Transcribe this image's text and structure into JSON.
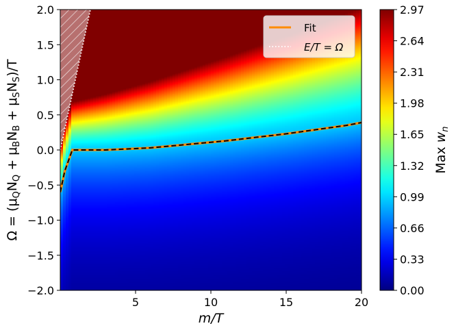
{
  "chart_data": {
    "type": "heatmap",
    "xlabel": "m/T",
    "ylabel": "Ω = (μ_Q N_Q + μ_B N_B + μ_S N_S)/T",
    "xlim": [
      0.0,
      20.0
    ],
    "ylim": [
      -2.0,
      2.0
    ],
    "x_ticks": [
      5,
      10,
      15,
      20
    ],
    "x_tick_labels": [
      "5",
      "10",
      "15",
      "20"
    ],
    "y_ticks": [
      -2.0,
      -1.5,
      -1.0,
      -0.5,
      0.0,
      0.5,
      1.0,
      1.5,
      2.0
    ],
    "y_tick_labels": [
      "−2.0",
      "−1.5",
      "−1.0",
      "−0.5",
      "0.0",
      "0.5",
      "1.0",
      "1.5",
      "2.0"
    ],
    "colorbar": {
      "label": "Max w_n",
      "range": [
        0.0,
        2.97
      ],
      "ticks": [
        0.0,
        0.33,
        0.66,
        0.99,
        1.32,
        1.65,
        1.98,
        2.31,
        2.64,
        2.97
      ],
      "tick_labels": [
        "0.00",
        "0.33",
        "0.66",
        "0.99",
        "1.32",
        "1.65",
        "1.98",
        "2.31",
        "2.64",
        "2.97"
      ],
      "colormap": "jet"
    },
    "series": [
      {
        "name": "Fit",
        "style": "solid orange line with black dashed overlay",
        "color": "#ff8c00",
        "x": [
          0.0,
          0.3,
          0.6,
          0.8,
          1.0,
          2.0,
          3.0,
          4.0,
          5.0,
          6.0,
          7.0,
          8.0,
          9.0,
          10.0,
          11.0,
          12.0,
          13.0,
          14.0,
          15.0,
          16.0,
          17.0,
          18.0,
          19.0,
          20.0
        ],
        "y": [
          -0.6,
          -0.3,
          -0.12,
          0.0,
          0.0,
          0.0,
          0.0,
          0.01,
          0.02,
          0.03,
          0.05,
          0.07,
          0.09,
          0.11,
          0.13,
          0.155,
          0.18,
          0.205,
          0.23,
          0.26,
          0.29,
          0.32,
          0.35,
          0.39
        ]
      },
      {
        "name": "E/T = Ω",
        "style": "dotted white line",
        "color": "#ffffff",
        "x": [
          0.0,
          2.0
        ],
        "y": [
          0.0,
          2.0
        ]
      }
    ],
    "shaded_region": "hatched region left of line E/T = Ω (Ω > m/T)",
    "legend": {
      "position": "top-right",
      "entries": [
        "Fit",
        "E/T = Ω"
      ]
    }
  }
}
